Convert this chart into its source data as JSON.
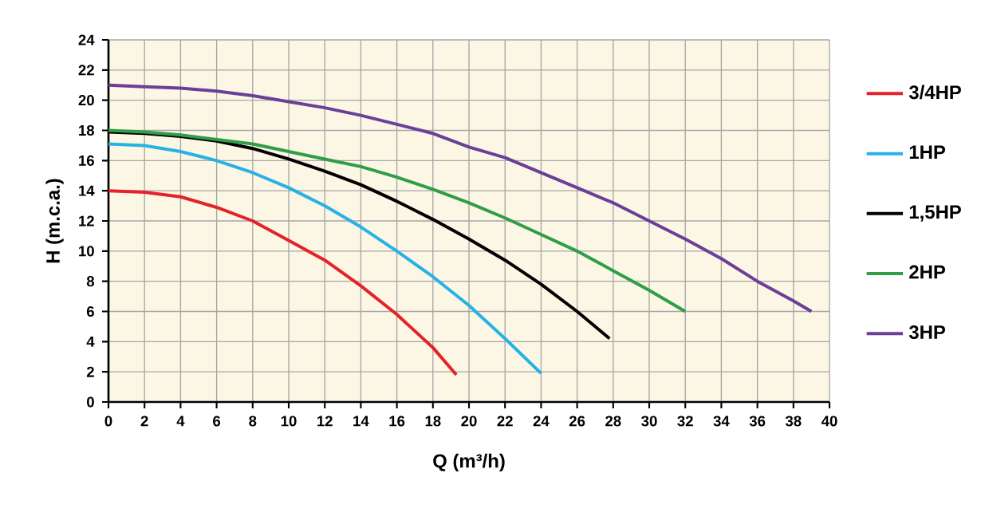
{
  "chart_data": {
    "type": "line",
    "xlabel": "Q (m³/h)",
    "ylabel": "H (m.c.a.)",
    "xlim": [
      0,
      40
    ],
    "ylim": [
      0,
      24
    ],
    "xticks": [
      0,
      2,
      4,
      6,
      8,
      10,
      12,
      14,
      16,
      18,
      20,
      22,
      24,
      26,
      28,
      30,
      32,
      34,
      36,
      38,
      40
    ],
    "yticks": [
      0,
      2,
      4,
      6,
      8,
      10,
      12,
      14,
      16,
      18,
      20,
      22,
      24
    ],
    "grid": true,
    "legend": "right",
    "marker": "none",
    "line_style": "solid",
    "series": [
      {
        "name": "3/4HP",
        "color": "#e3222a",
        "x": [
          0,
          2,
          4,
          6,
          8,
          10,
          12,
          14,
          16,
          18,
          19.3
        ],
        "values": [
          14,
          13.9,
          13.6,
          12.9,
          12,
          10.7,
          9.4,
          7.7,
          5.8,
          3.6,
          1.8
        ]
      },
      {
        "name": "1HP",
        "color": "#27b2e6",
        "x": [
          0,
          2,
          4,
          6,
          8,
          10,
          12,
          14,
          16,
          18,
          20,
          22,
          24
        ],
        "values": [
          17.1,
          17,
          16.6,
          16,
          15.2,
          14.2,
          13,
          11.6,
          10,
          8.3,
          6.4,
          4.2,
          1.9
        ]
      },
      {
        "name": "1,5HP",
        "color": "#000000",
        "x": [
          0,
          2,
          4,
          6,
          8,
          10,
          12,
          14,
          16,
          18,
          20,
          22,
          24,
          26,
          27.8
        ],
        "values": [
          17.9,
          17.8,
          17.6,
          17.3,
          16.8,
          16.1,
          15.3,
          14.4,
          13.3,
          12.1,
          10.8,
          9.4,
          7.8,
          6,
          4.2
        ]
      },
      {
        "name": "2HP",
        "color": "#2e9e48",
        "x": [
          0,
          2,
          4,
          6,
          8,
          10,
          12,
          14,
          16,
          18,
          20,
          22,
          24,
          26,
          28,
          30,
          32
        ],
        "values": [
          18,
          17.9,
          17.7,
          17.4,
          17.1,
          16.6,
          16.1,
          15.6,
          14.9,
          14.1,
          13.2,
          12.2,
          11.1,
          10,
          8.7,
          7.4,
          6
        ]
      },
      {
        "name": "3HP",
        "color": "#6b3f98",
        "x": [
          0,
          2,
          4,
          6,
          8,
          10,
          12,
          14,
          16,
          18,
          20,
          22,
          24,
          26,
          28,
          30,
          32,
          34,
          36,
          38,
          39
        ],
        "values": [
          21,
          20.9,
          20.8,
          20.6,
          20.3,
          19.9,
          19.5,
          19,
          18.4,
          17.8,
          16.9,
          16.2,
          15.2,
          14.2,
          13.2,
          12,
          10.8,
          9.5,
          8,
          6.7,
          6
        ]
      }
    ]
  }
}
